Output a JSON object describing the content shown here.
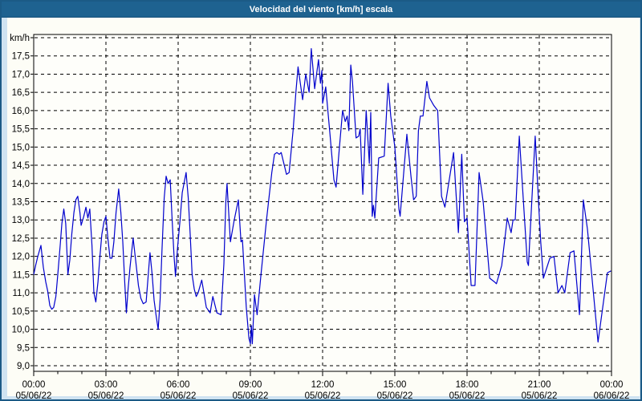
{
  "window": {
    "title": "Velocidad del viento [km/h] escala"
  },
  "colors": {
    "page_bg": "#cfe3f1",
    "chrome_border": "#1b5a86",
    "titlebar_bg": "#1e6290",
    "titlebar_text": "#ffffff",
    "panel_bg": "#fdfdf6",
    "plot_bg": "#fefefa",
    "grid": "#000000",
    "axis": "#000000",
    "line": "#0000cd",
    "tick_text": "#000000"
  },
  "chart_data": {
    "type": "line",
    "title": "Velocidad del viento [km/h] escala",
    "grid": true,
    "x_axis": {
      "unit": "hours",
      "range_hours": [
        0,
        24
      ],
      "minor_tick_every_hours": 1,
      "ticks": [
        {
          "hour": 0,
          "time": "00:00",
          "date": "05/06/22"
        },
        {
          "hour": 3,
          "time": "03:00",
          "date": "05/06/22"
        },
        {
          "hour": 6,
          "time": "06:00",
          "date": "05/06/22"
        },
        {
          "hour": 9,
          "time": "09:00",
          "date": "05/06/22"
        },
        {
          "hour": 12,
          "time": "12:00",
          "date": "05/06/22"
        },
        {
          "hour": 15,
          "time": "15:00",
          "date": "05/06/22"
        },
        {
          "hour": 18,
          "time": "18:00",
          "date": "05/06/22"
        },
        {
          "hour": 21,
          "time": "21:00",
          "date": "05/06/22"
        },
        {
          "hour": 24,
          "time": "00:00",
          "date": "06/06/22"
        }
      ]
    },
    "y_axis": {
      "unit_label": "km/h",
      "unit_label_value": 18.0,
      "ylim": [
        9.0,
        18.0
      ],
      "gridline_step": 0.5,
      "ticks": [
        {
          "value": 17.5,
          "label": "17,5"
        },
        {
          "value": 17.0,
          "label": "17,0"
        },
        {
          "value": 16.5,
          "label": "16,5"
        },
        {
          "value": 16.0,
          "label": "16,0"
        },
        {
          "value": 15.5,
          "label": "15,5"
        },
        {
          "value": 15.0,
          "label": "15,0"
        },
        {
          "value": 14.5,
          "label": "14,5"
        },
        {
          "value": 14.0,
          "label": "14,0"
        },
        {
          "value": 13.5,
          "label": "13,5"
        },
        {
          "value": 13.0,
          "label": "13,0"
        },
        {
          "value": 12.5,
          "label": "12,5"
        },
        {
          "value": 12.0,
          "label": "12,0"
        },
        {
          "value": 11.5,
          "label": "11,5"
        },
        {
          "value": 11.0,
          "label": "11,0"
        },
        {
          "value": 10.5,
          "label": "10,5"
        },
        {
          "value": 10.0,
          "label": "10,0"
        },
        {
          "value": 9.5,
          "label": "9,5"
        },
        {
          "value": 9.0,
          "label": "9,0"
        }
      ]
    },
    "series": [
      {
        "name": "Velocidad del viento",
        "color": "#0000cd",
        "points": [
          [
            0,
            11.5
          ],
          [
            0.08,
            11.75
          ],
          [
            0.17,
            12
          ],
          [
            0.3,
            12.3
          ],
          [
            0.4,
            11.7
          ],
          [
            0.5,
            11.3
          ],
          [
            0.58,
            11.05
          ],
          [
            0.67,
            10.65
          ],
          [
            0.75,
            10.55
          ],
          [
            0.83,
            10.6
          ],
          [
            0.92,
            10.9
          ],
          [
            1,
            11.5
          ],
          [
            1.1,
            12.3
          ],
          [
            1.17,
            12.9
          ],
          [
            1.25,
            13.3
          ],
          [
            1.33,
            12.9
          ],
          [
            1.42,
            11.5
          ],
          [
            1.5,
            11.9
          ],
          [
            1.58,
            12.6
          ],
          [
            1.67,
            13.2
          ],
          [
            1.75,
            13.55
          ],
          [
            1.83,
            13.65
          ],
          [
            1.92,
            13.2
          ],
          [
            1.97,
            12.85
          ],
          [
            2.08,
            13.1
          ],
          [
            2.17,
            13.35
          ],
          [
            2.25,
            13.05
          ],
          [
            2.33,
            13.3
          ],
          [
            2.42,
            12.3
          ],
          [
            2.5,
            11
          ],
          [
            2.58,
            10.75
          ],
          [
            2.67,
            11.3
          ],
          [
            2.75,
            12
          ],
          [
            2.83,
            12.6
          ],
          [
            2.92,
            12.95
          ],
          [
            3,
            13.1
          ],
          [
            3.08,
            12.5
          ],
          [
            3.17,
            11.95
          ],
          [
            3.25,
            11.95
          ],
          [
            3.33,
            12.4
          ],
          [
            3.42,
            13.2
          ],
          [
            3.53,
            13.85
          ],
          [
            3.62,
            13.2
          ],
          [
            3.7,
            12.4
          ],
          [
            3.78,
            11.3
          ],
          [
            3.85,
            10.45
          ],
          [
            3.92,
            11.1
          ],
          [
            4,
            11.7
          ],
          [
            4.13,
            12.5
          ],
          [
            4.25,
            11.8
          ],
          [
            4.35,
            11.2
          ],
          [
            4.45,
            10.85
          ],
          [
            4.55,
            10.7
          ],
          [
            4.67,
            10.75
          ],
          [
            4.83,
            12.1
          ],
          [
            4.92,
            11.5
          ],
          [
            5,
            10.8
          ],
          [
            5.08,
            10.4
          ],
          [
            5.17,
            10
          ],
          [
            5.25,
            10.8
          ],
          [
            5.33,
            12.2
          ],
          [
            5.42,
            13.6
          ],
          [
            5.5,
            14.2
          ],
          [
            5.58,
            14
          ],
          [
            5.67,
            14.1
          ],
          [
            5.75,
            13
          ],
          [
            5.83,
            12
          ],
          [
            5.89,
            11.45
          ],
          [
            5.97,
            12.2
          ],
          [
            6.08,
            13
          ],
          [
            6.17,
            13.75
          ],
          [
            6.33,
            14.3
          ],
          [
            6.42,
            13.6
          ],
          [
            6.5,
            12.6
          ],
          [
            6.58,
            11.5
          ],
          [
            6.67,
            11.1
          ],
          [
            6.75,
            10.9
          ],
          [
            6.83,
            11
          ],
          [
            6.98,
            11.35
          ],
          [
            7.17,
            10.6
          ],
          [
            7.33,
            10.45
          ],
          [
            7.44,
            10.9
          ],
          [
            7.61,
            10.45
          ],
          [
            7.78,
            10.4
          ],
          [
            7.9,
            11.8
          ],
          [
            7.98,
            13.5
          ],
          [
            8.03,
            14
          ],
          [
            8.17,
            12.4
          ],
          [
            8.33,
            13
          ],
          [
            8.5,
            13.55
          ],
          [
            8.61,
            12.4
          ],
          [
            8.67,
            12.45
          ],
          [
            8.83,
            10.6
          ],
          [
            8.94,
            9.75
          ],
          [
            9,
            9.6
          ],
          [
            9.04,
            10.1
          ],
          [
            9.08,
            9.6
          ],
          [
            9.17,
            10.95
          ],
          [
            9.28,
            10.4
          ],
          [
            9.44,
            11.5
          ],
          [
            9.67,
            13
          ],
          [
            9.89,
            14.3
          ],
          [
            10,
            14.8
          ],
          [
            10.1,
            14.85
          ],
          [
            10.2,
            14.8
          ],
          [
            10.28,
            14.85
          ],
          [
            10.5,
            14.25
          ],
          [
            10.61,
            14.3
          ],
          [
            10.78,
            15.5
          ],
          [
            10.89,
            16.5
          ],
          [
            10.98,
            17.2
          ],
          [
            11.17,
            16.3
          ],
          [
            11.3,
            17
          ],
          [
            11.44,
            16.5
          ],
          [
            11.53,
            17.7
          ],
          [
            11.67,
            16.6
          ],
          [
            11.83,
            17.4
          ],
          [
            11.91,
            16.75
          ],
          [
            11.97,
            17.1
          ],
          [
            12,
            16.2
          ],
          [
            12.13,
            16.65
          ],
          [
            12.3,
            15.4
          ],
          [
            12.47,
            14.1
          ],
          [
            12.56,
            13.9
          ],
          [
            12.7,
            15
          ],
          [
            12.83,
            16
          ],
          [
            12.94,
            15.7
          ],
          [
            13.02,
            15.85
          ],
          [
            13.09,
            15.45
          ],
          [
            13.17,
            17.25
          ],
          [
            13.24,
            16.8
          ],
          [
            13.39,
            15.25
          ],
          [
            13.5,
            15.3
          ],
          [
            13.56,
            15.5
          ],
          [
            13.67,
            13.7
          ],
          [
            13.81,
            16
          ],
          [
            13.94,
            14.55
          ],
          [
            14,
            15.95
          ],
          [
            14.06,
            13.1
          ],
          [
            14.11,
            13.4
          ],
          [
            14.17,
            13.05
          ],
          [
            14.33,
            14.7
          ],
          [
            14.56,
            14.75
          ],
          [
            14.72,
            16.75
          ],
          [
            14.83,
            15.85
          ],
          [
            15,
            15
          ],
          [
            15.17,
            13.3
          ],
          [
            15.22,
            13.1
          ],
          [
            15.5,
            15.35
          ],
          [
            15.67,
            14.2
          ],
          [
            15.78,
            13.55
          ],
          [
            15.89,
            13.65
          ],
          [
            15.98,
            15.45
          ],
          [
            16.06,
            15.85
          ],
          [
            16.17,
            15.85
          ],
          [
            16.33,
            16.8
          ],
          [
            16.44,
            16.35
          ],
          [
            16.61,
            16.15
          ],
          [
            16.78,
            16
          ],
          [
            16.94,
            13.65
          ],
          [
            17.08,
            13.35
          ],
          [
            17.44,
            14.85
          ],
          [
            17.64,
            12.65
          ],
          [
            17.78,
            14.8
          ],
          [
            17.89,
            12.95
          ],
          [
            18,
            13.05
          ],
          [
            18.17,
            11.2
          ],
          [
            18.33,
            11.2
          ],
          [
            18.5,
            14.3
          ],
          [
            18.67,
            13.5
          ],
          [
            18.94,
            11.4
          ],
          [
            19.14,
            11.3
          ],
          [
            19.22,
            11.25
          ],
          [
            19.44,
            11.75
          ],
          [
            19.67,
            13.05
          ],
          [
            19.83,
            12.65
          ],
          [
            19.91,
            13
          ],
          [
            20,
            13
          ],
          [
            20.17,
            15.3
          ],
          [
            20.5,
            11.85
          ],
          [
            20.55,
            11.75
          ],
          [
            20.83,
            15.3
          ],
          [
            20.98,
            13.35
          ],
          [
            21.06,
            12.4
          ],
          [
            21.17,
            11.4
          ],
          [
            21.44,
            11.95
          ],
          [
            21.61,
            12
          ],
          [
            21.78,
            11
          ],
          [
            21.94,
            11.2
          ],
          [
            22.06,
            11
          ],
          [
            22.28,
            12.1
          ],
          [
            22.44,
            12.15
          ],
          [
            22.67,
            10.4
          ],
          [
            22.83,
            13.55
          ],
          [
            23,
            12.75
          ],
          [
            23.44,
            9.65
          ],
          [
            23.83,
            11.55
          ],
          [
            23.98,
            11.6
          ]
        ]
      }
    ]
  }
}
